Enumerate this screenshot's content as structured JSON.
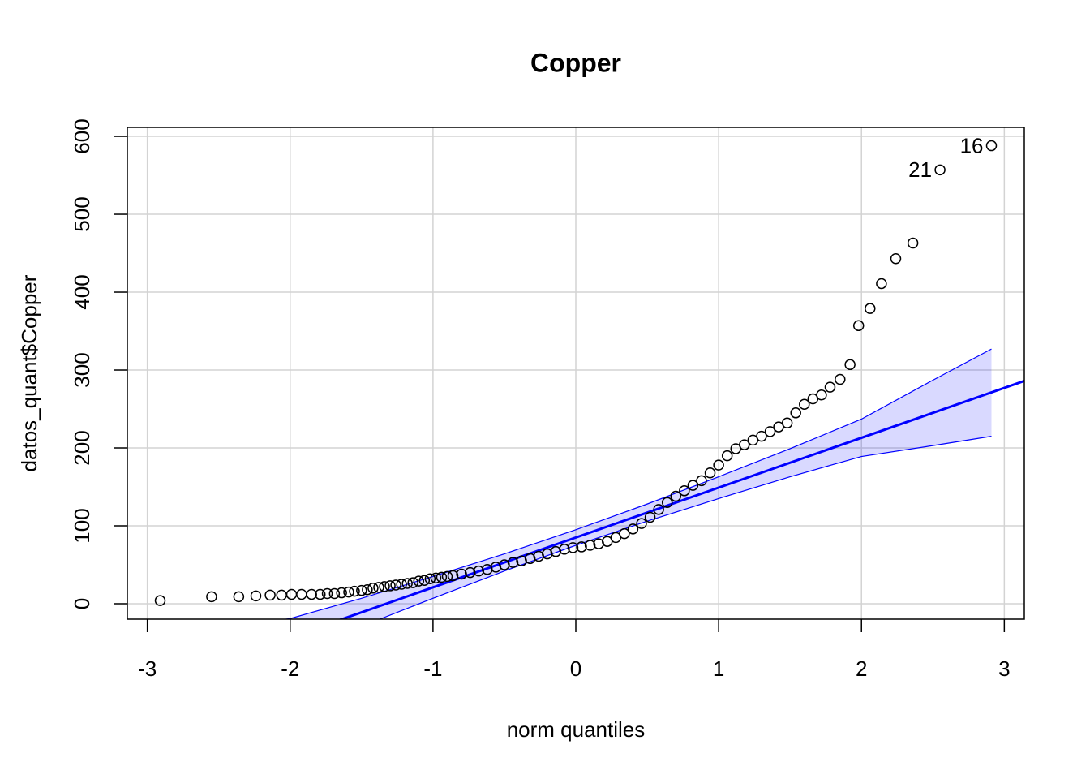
{
  "chart_data": {
    "type": "qqplot",
    "title": "Copper",
    "x_label": "norm quantiles",
    "y_label": "datos_quant$Copper",
    "xlim": [
      -3.14,
      3.14
    ],
    "ylim": [
      -19.8,
      611.5
    ],
    "xticks": [
      -3,
      -2,
      -1,
      0,
      1,
      2,
      3
    ],
    "yticks": [
      0,
      100,
      200,
      300,
      400,
      500,
      600
    ],
    "grid": true,
    "points": {
      "color": "#000000",
      "x": [
        -2.91,
        -2.55,
        -2.36,
        -2.24,
        -2.14,
        -2.06,
        -1.99,
        -1.92,
        -1.85,
        -1.79,
        -1.74,
        -1.69,
        -1.64,
        -1.59,
        -1.55,
        -1.5,
        -1.46,
        -1.42,
        -1.38,
        -1.34,
        -1.3,
        -1.26,
        -1.22,
        -1.18,
        -1.14,
        -1.1,
        -1.06,
        -1.02,
        -0.98,
        -0.94,
        -0.9,
        -0.86,
        -0.8,
        -0.74,
        -0.68,
        -0.62,
        -0.56,
        -0.5,
        -0.44,
        -0.38,
        -0.32,
        -0.26,
        -0.2,
        -0.14,
        -0.08,
        -0.02,
        0.04,
        0.1,
        0.16,
        0.22,
        0.28,
        0.34,
        0.4,
        0.46,
        0.52,
        0.58,
        0.64,
        0.7,
        0.76,
        0.82,
        0.88,
        0.94,
        1.0,
        1.06,
        1.12,
        1.18,
        1.24,
        1.3,
        1.36,
        1.42,
        1.48,
        1.54,
        1.6,
        1.66,
        1.72,
        1.78,
        1.85,
        1.92,
        1.98,
        2.06,
        2.14,
        2.24,
        2.36,
        2.55,
        2.91
      ],
      "y": [
        4,
        9,
        9,
        10,
        11,
        11,
        12,
        12,
        12,
        12,
        13,
        13,
        14,
        15,
        16,
        17,
        18,
        20,
        21,
        22,
        23,
        24,
        25,
        26,
        27,
        29,
        30,
        32,
        33,
        34,
        35,
        36,
        38,
        40,
        42,
        44,
        47,
        50,
        53,
        55,
        58,
        61,
        64,
        67,
        70,
        72,
        73,
        75,
        77,
        80,
        85,
        90,
        96,
        103,
        111,
        121,
        130,
        138,
        145,
        152,
        158,
        168,
        178,
        190,
        199,
        204,
        210,
        215,
        221,
        227,
        232,
        245,
        256,
        263,
        268,
        278,
        288,
        307,
        357,
        379,
        411,
        443,
        463,
        557,
        588
      ]
    },
    "reference_line": {
      "color": "#0000ff",
      "x": [
        -3.14,
        3.14
      ],
      "y": [
        -116,
        286
      ]
    },
    "envelope": {
      "color": "#0000ff",
      "x": [
        -2.91,
        -2.5,
        -2,
        -1.5,
        -1,
        -0.5,
        0,
        0.5,
        1,
        1.5,
        2,
        2.5,
        2.91
      ],
      "upper": [
        -45.2,
        -33,
        -19,
        7,
        35,
        64,
        95,
        128,
        163,
        199,
        237,
        287,
        327
      ],
      "lower": [
        -157.2,
        -117,
        -67,
        -29,
        7,
        42,
        75,
        106,
        135,
        163,
        189,
        203,
        215
      ]
    },
    "annotations": [
      {
        "text": "16",
        "x": 2.91,
        "y": 588
      },
      {
        "text": "21",
        "x": 2.55,
        "y": 557
      }
    ]
  }
}
